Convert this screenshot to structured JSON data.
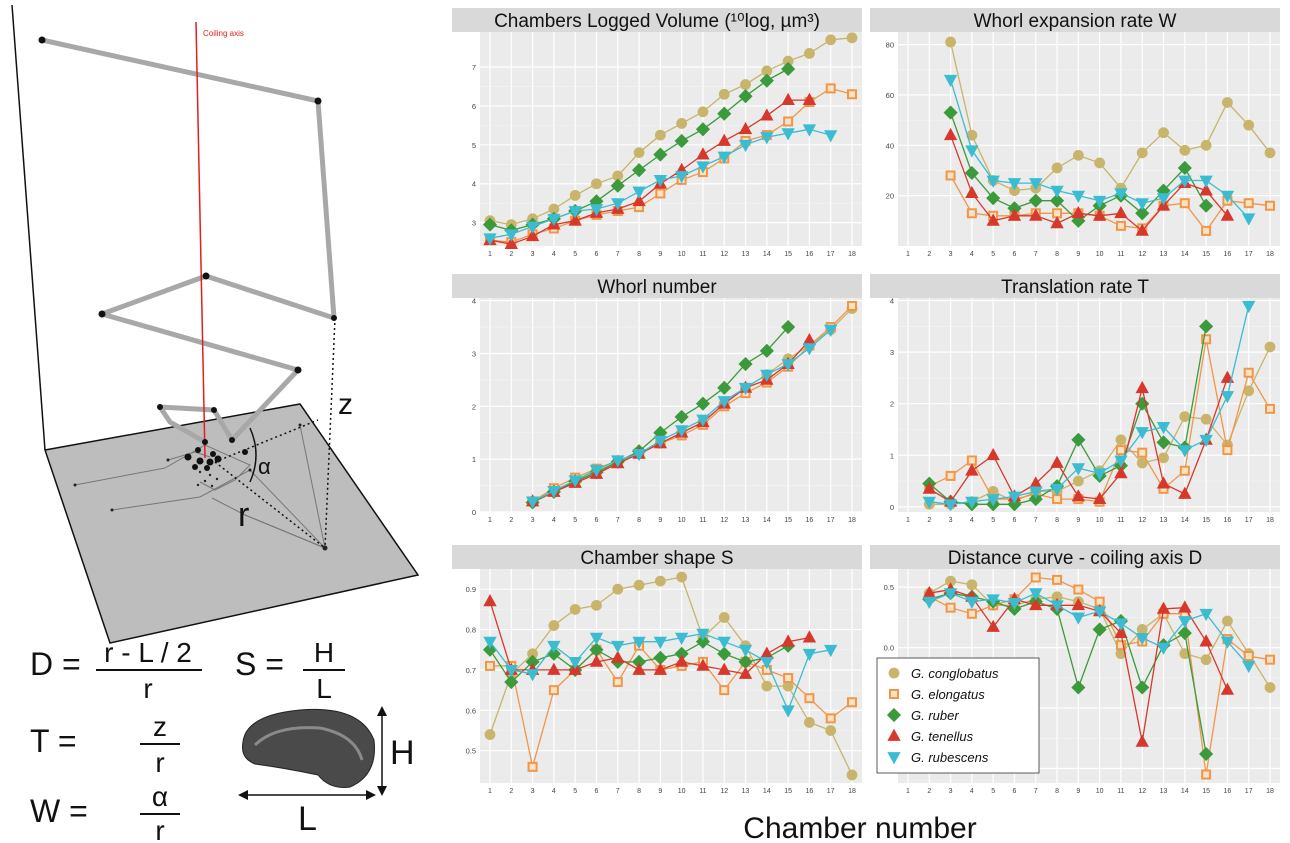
{
  "figure": {
    "axis_label": "Coiling axis",
    "label_z": "z",
    "label_alpha": "α",
    "label_r": "r",
    "label_H": "H",
    "label_L": "L",
    "x_axis_label": "Chamber number"
  },
  "formulas": {
    "D": {
      "lhs": "D =",
      "num": "r - L / 2",
      "den": "r"
    },
    "S": {
      "lhs": "S =",
      "num": "H",
      "den": "L"
    },
    "T": {
      "lhs": "T =",
      "num": "z",
      "den": "r"
    },
    "W": {
      "lhs": "W =",
      "num": "α",
      "den": "r"
    }
  },
  "legend": [
    {
      "label": "G. conglobatus",
      "color": "#c8b46a",
      "marker": "circle"
    },
    {
      "label": "G. elongatus",
      "color": "#f0964a",
      "marker": "square"
    },
    {
      "label": "G. ruber",
      "color": "#3b9a3b",
      "marker": "diamond"
    },
    {
      "label": "G. tenellus",
      "color": "#d7382c",
      "marker": "triangle-up"
    },
    {
      "label": "G. rubescens",
      "color": "#3bbcd1",
      "marker": "triangle-down"
    }
  ],
  "chart_data": [
    {
      "type": "line",
      "title": "Chambers Logged Volume (¹⁰log, µm³)",
      "x": [
        1,
        2,
        3,
        4,
        5,
        6,
        7,
        8,
        9,
        10,
        11,
        12,
        13,
        14,
        15,
        16,
        17,
        18
      ],
      "ylim": [
        2.4,
        7.9
      ],
      "yticks": [
        3,
        4,
        5,
        6,
        7
      ],
      "ytick_labels": [
        "3",
        "4",
        "5",
        "6",
        "7"
      ],
      "series": [
        {
          "name": "G. conglobatus",
          "values": [
            3.05,
            2.95,
            3.1,
            3.35,
            3.7,
            4.0,
            4.2,
            4.8,
            5.25,
            5.55,
            5.85,
            6.3,
            6.55,
            6.9,
            7.15,
            7.35,
            7.7,
            7.75
          ]
        },
        {
          "name": "G. elongatus",
          "values": [
            2.55,
            2.5,
            2.7,
            2.85,
            3.05,
            3.2,
            3.3,
            3.4,
            3.75,
            4.1,
            4.3,
            4.65,
            5.1,
            5.25,
            5.6,
            6.1,
            6.45,
            6.3
          ]
        },
        {
          "name": "G. ruber",
          "values": [
            2.95,
            2.8,
            2.95,
            3.1,
            3.3,
            3.55,
            3.95,
            4.35,
            4.75,
            5.1,
            5.4,
            5.8,
            6.25,
            6.65,
            6.95,
            null,
            null,
            null
          ]
        },
        {
          "name": "G. tenellus",
          "values": [
            2.55,
            2.45,
            2.65,
            2.95,
            3.05,
            3.25,
            3.35,
            3.55,
            4.0,
            4.35,
            4.75,
            5.1,
            5.4,
            5.75,
            6.15,
            6.15,
            null,
            null
          ]
        },
        {
          "name": "G. rubescens",
          "values": [
            2.6,
            2.7,
            2.9,
            3.1,
            3.3,
            3.35,
            3.5,
            3.8,
            4.1,
            4.2,
            4.45,
            4.7,
            5.0,
            5.2,
            5.3,
            5.4,
            5.25,
            null
          ]
        }
      ]
    },
    {
      "type": "line",
      "title": "Whorl expansion rate W",
      "x": [
        1,
        2,
        3,
        4,
        5,
        6,
        7,
        8,
        9,
        10,
        11,
        12,
        13,
        14,
        15,
        16,
        17,
        18
      ],
      "ylim": [
        0,
        85
      ],
      "yticks": [
        20,
        40,
        60,
        80
      ],
      "ytick_labels": [
        "20",
        "40",
        "60",
        "80"
      ],
      "series": [
        {
          "name": "G. conglobatus",
          "values": [
            null,
            null,
            81,
            44,
            26,
            22,
            23,
            31,
            36,
            33,
            23,
            37,
            45,
            38,
            40,
            57,
            48,
            37
          ]
        },
        {
          "name": "G. elongatus",
          "values": [
            null,
            null,
            28,
            13,
            12,
            12,
            13,
            13,
            13,
            12,
            8,
            7,
            16,
            17,
            6,
            18,
            17,
            16
          ]
        },
        {
          "name": "G. ruber",
          "values": [
            null,
            null,
            53,
            29,
            19,
            15,
            18,
            18,
            10,
            16,
            20,
            13,
            22,
            31,
            16,
            null,
            null,
            null
          ]
        },
        {
          "name": "G. tenellus",
          "values": [
            null,
            null,
            44,
            21,
            10,
            12,
            12,
            9,
            13,
            12,
            13,
            6,
            16,
            25,
            22,
            12,
            null,
            null
          ]
        },
        {
          "name": "G. rubescens",
          "values": [
            null,
            null,
            66,
            38,
            26,
            25,
            25,
            22,
            20,
            18,
            21,
            17,
            19,
            26,
            26,
            20,
            11,
            null
          ]
        }
      ]
    },
    {
      "type": "line",
      "title": "Whorl number",
      "x": [
        1,
        2,
        3,
        4,
        5,
        6,
        7,
        8,
        9,
        10,
        11,
        12,
        13,
        14,
        15,
        16,
        17,
        18
      ],
      "ylim": [
        0,
        4.05
      ],
      "yticks": [
        0,
        1,
        2,
        3,
        4
      ],
      "ytick_labels": [
        "0",
        "1",
        "2",
        "3",
        "4"
      ],
      "series": [
        {
          "name": "G. conglobatus",
          "values": [
            null,
            null,
            0.2,
            0.4,
            0.6,
            0.78,
            0.95,
            1.1,
            1.3,
            1.5,
            1.7,
            2.05,
            2.35,
            2.6,
            2.9,
            3.15,
            3.45,
            3.85
          ]
        },
        {
          "name": "G. elongatus",
          "values": [
            null,
            null,
            0.2,
            0.45,
            0.65,
            0.82,
            0.97,
            1.12,
            1.3,
            1.45,
            1.65,
            2.0,
            2.25,
            2.45,
            2.75,
            3.15,
            3.5,
            3.9
          ]
        },
        {
          "name": "G. ruber",
          "values": [
            null,
            null,
            0.18,
            0.38,
            0.58,
            0.75,
            0.95,
            1.15,
            1.5,
            1.8,
            2.05,
            2.35,
            2.8,
            3.05,
            3.5,
            null,
            null,
            null
          ]
        },
        {
          "name": "G. tenellus",
          "values": [
            null,
            null,
            0.2,
            0.38,
            0.55,
            0.72,
            0.92,
            1.1,
            1.3,
            1.5,
            1.7,
            2.05,
            2.35,
            2.5,
            2.8,
            3.25,
            null,
            null
          ]
        },
        {
          "name": "G. rubescens",
          "values": [
            null,
            null,
            0.2,
            0.4,
            0.6,
            0.8,
            0.98,
            1.1,
            1.35,
            1.55,
            1.75,
            2.1,
            2.35,
            2.6,
            2.8,
            3.1,
            3.45,
            null
          ]
        }
      ]
    },
    {
      "type": "line",
      "title": "Translation rate T",
      "x": [
        1,
        2,
        3,
        4,
        5,
        6,
        7,
        8,
        9,
        10,
        11,
        12,
        13,
        14,
        15,
        16,
        17,
        18
      ],
      "ylim": [
        -0.1,
        4.05
      ],
      "yticks": [
        0,
        1,
        2,
        3,
        4
      ],
      "ytick_labels": [
        "0",
        "1",
        "2",
        "3",
        "4"
      ],
      "series": [
        {
          "name": "G. conglobatus",
          "values": [
            null,
            0.05,
            0.05,
            0.1,
            0.3,
            0.1,
            0.3,
            0.3,
            0.5,
            0.7,
            1.3,
            0.85,
            0.95,
            1.75,
            1.7,
            1.2,
            2.25,
            3.1
          ]
        },
        {
          "name": "G. elongatus",
          "values": [
            null,
            0.4,
            0.6,
            0.9,
            0.15,
            0.15,
            0.25,
            0.15,
            0.15,
            0.1,
            1.1,
            1.05,
            0.35,
            0.7,
            3.25,
            1.1,
            2.6,
            1.9
          ]
        },
        {
          "name": "G. ruber",
          "values": [
            null,
            0.45,
            0.1,
            0.05,
            0.05,
            0.05,
            0.15,
            0.4,
            1.3,
            0.6,
            0.8,
            2.0,
            1.25,
            1.15,
            3.5,
            null,
            null,
            null
          ]
        },
        {
          "name": "G. tenellus",
          "values": [
            null,
            0.35,
            0.1,
            0.7,
            1.0,
            0.2,
            0.45,
            0.85,
            0.2,
            0.15,
            0.65,
            2.3,
            0.45,
            0.25,
            1.3,
            2.5,
            null,
            null
          ]
        },
        {
          "name": "G. rubescens",
          "values": [
            null,
            0.1,
            0.05,
            0.1,
            0.15,
            0.2,
            0.3,
            0.35,
            0.75,
            0.65,
            0.9,
            1.45,
            1.55,
            1.1,
            1.3,
            2.15,
            3.9,
            null
          ]
        }
      ]
    },
    {
      "type": "line",
      "title": "Chamber shape S",
      "x": [
        1,
        2,
        3,
        4,
        5,
        6,
        7,
        8,
        9,
        10,
        11,
        12,
        13,
        14,
        15,
        16,
        17,
        18
      ],
      "ylim": [
        0.42,
        0.95
      ],
      "yticks": [
        0.5,
        0.6,
        0.7,
        0.8,
        0.9
      ],
      "ytick_labels": [
        "0.5",
        "0.6",
        "0.7",
        "0.8",
        "0.9"
      ],
      "series": [
        {
          "name": "G. conglobatus",
          "values": [
            0.54,
            0.69,
            0.74,
            0.81,
            0.85,
            0.86,
            0.9,
            0.91,
            0.92,
            0.93,
            0.78,
            0.83,
            0.76,
            0.66,
            0.66,
            0.57,
            0.55,
            0.44
          ]
        },
        {
          "name": "G. elongatus",
          "values": [
            0.71,
            0.71,
            0.46,
            0.65,
            0.7,
            0.75,
            0.67,
            0.76,
            0.7,
            0.71,
            0.72,
            0.65,
            0.72,
            0.7,
            0.68,
            0.63,
            0.58,
            0.62
          ]
        },
        {
          "name": "G. ruber",
          "values": [
            0.75,
            0.67,
            0.72,
            0.74,
            0.7,
            0.75,
            0.72,
            0.72,
            0.73,
            0.74,
            0.77,
            0.74,
            0.72,
            0.73,
            0.76,
            null,
            null,
            null
          ]
        },
        {
          "name": "G. tenellus",
          "values": [
            0.87,
            0.7,
            0.7,
            0.7,
            0.7,
            0.72,
            0.73,
            0.7,
            0.7,
            0.72,
            0.71,
            0.7,
            0.69,
            0.74,
            0.77,
            0.78,
            null,
            null
          ]
        },
        {
          "name": "G. rubescens",
          "values": [
            0.77,
            0.7,
            0.69,
            0.76,
            0.72,
            0.78,
            0.76,
            0.77,
            0.77,
            0.78,
            0.79,
            0.77,
            0.75,
            0.72,
            0.6,
            0.74,
            0.75,
            null
          ]
        }
      ]
    },
    {
      "type": "line",
      "title": "Distance curve - coiling axis D",
      "x": [
        1,
        2,
        3,
        4,
        5,
        6,
        7,
        8,
        9,
        10,
        11,
        12,
        13,
        14,
        15,
        16,
        17,
        18
      ],
      "ylim": [
        -1.12,
        0.65
      ],
      "yticks": [
        -1.0,
        -0.5,
        0.0,
        0.5
      ],
      "ytick_labels": [
        "-1.0",
        "-0.5",
        "0.0",
        "0.5"
      ],
      "series": [
        {
          "name": "G. conglobatus",
          "values": [
            null,
            0.45,
            0.55,
            0.52,
            0.35,
            0.35,
            0.4,
            0.42,
            0.38,
            0.32,
            -0.05,
            0.15,
            0.28,
            -0.05,
            -0.1,
            0.22,
            -0.05,
            -0.33
          ]
        },
        {
          "name": "G. elongatus",
          "values": [
            null,
            0.42,
            0.33,
            0.28,
            0.35,
            0.4,
            0.58,
            0.56,
            0.48,
            0.38,
            0.02,
            0.05,
            0.28,
            0.28,
            -1.05,
            0.07,
            -0.07,
            -0.1
          ]
        },
        {
          "name": "G. ruber",
          "values": [
            null,
            0.4,
            0.45,
            0.42,
            0.38,
            0.32,
            0.38,
            0.32,
            -0.33,
            0.15,
            0.22,
            -0.33,
            0.02,
            0.12,
            -0.88,
            null,
            null,
            null
          ]
        },
        {
          "name": "G. tenellus",
          "values": [
            null,
            0.45,
            0.48,
            0.42,
            0.17,
            0.4,
            0.35,
            0.35,
            0.35,
            0.3,
            0.12,
            -0.78,
            0.32,
            0.33,
            0.05,
            -0.35,
            null,
            null
          ]
        },
        {
          "name": "G. rubescens",
          "values": [
            null,
            0.38,
            0.45,
            0.38,
            0.4,
            0.37,
            0.45,
            0.35,
            0.25,
            0.3,
            0.2,
            0.08,
            0.0,
            0.22,
            0.28,
            0.05,
            -0.15,
            null
          ]
        }
      ]
    }
  ]
}
